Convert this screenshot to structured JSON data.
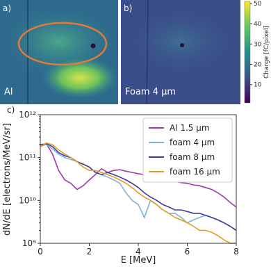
{
  "chart_data": [
    {
      "type": "image",
      "label": "a)",
      "caption": "Al"
    },
    {
      "type": "image",
      "label": "b)",
      "caption": "Foam 4 μm",
      "colorbar": {
        "label": "Charge [fC/pixel]",
        "lim": [
          1,
          51
        ],
        "ticks": [
          10,
          20,
          30,
          40,
          50
        ]
      }
    },
    {
      "type": "line",
      "label": "c)",
      "xlabel": "E [MeV]",
      "ylabel": "dN/dE [electrons/MeV/sr]",
      "log_y": true,
      "legend": "upper right",
      "xlim": [
        0,
        8
      ],
      "xticks": [
        0,
        2,
        4,
        6,
        8
      ],
      "ylim": [
        1000000000.0,
        1000000000000.0
      ],
      "yticks": [
        {
          "value": 1000000000.0,
          "label": "10⁹"
        },
        {
          "value": 10000000000.0,
          "label": "10¹⁰"
        },
        {
          "value": 100000000000.0,
          "label": "10¹¹"
        },
        {
          "value": 1000000000000.0,
          "label": "10¹²"
        }
      ],
      "x": [
        0,
        0.25,
        0.5,
        0.75,
        1,
        1.25,
        1.5,
        1.75,
        2,
        2.25,
        2.5,
        2.75,
        3,
        3.25,
        3.5,
        3.75,
        4,
        4.25,
        4.5,
        4.75,
        5,
        5.25,
        5.5,
        5.75,
        6,
        6.25,
        6.5,
        6.75,
        7,
        7.25,
        7.5,
        7.75,
        8
      ],
      "series": [
        {
          "name": "Al 1.5 μm",
          "color": "#9c3aa6",
          "values": [
            180000000000.0,
            210000000000.0,
            120000000000.0,
            50000000000.0,
            30000000000.0,
            25000000000.0,
            18000000000.0,
            22000000000.0,
            30000000000.0,
            40000000000.0,
            55000000000.0,
            45000000000.0,
            50000000000.0,
            52000000000.0,
            48000000000.0,
            45000000000.0,
            42000000000.0,
            40000000000.0,
            38000000000.0,
            35000000000.0,
            32000000000.0,
            30000000000.0,
            28000000000.0,
            26000000000.0,
            25000000000.0,
            23000000000.0,
            22000000000.0,
            20000000000.0,
            18000000000.0,
            15000000000.0,
            12000000000.0,
            9000000000.0,
            7000000000.0
          ]
        },
        {
          "name": "foam 4 μm",
          "color": "#7fb2d8",
          "values": [
            200000000000.0,
            200000000000.0,
            160000000000.0,
            120000000000.0,
            100000000000.0,
            90000000000.0,
            80000000000.0,
            70000000000.0,
            60000000000.0,
            45000000000.0,
            40000000000.0,
            35000000000.0,
            30000000000.0,
            25000000000.0,
            15000000000.0,
            10000000000.0,
            8000000000.0,
            4000000000.0,
            10000000000.0,
            8000000000.0,
            6000000000.0,
            5000000000.0,
            5000000000.0,
            4000000000.0,
            3000000000.0,
            3500000000.0,
            4000000000.0,
            4500000000.0,
            4000000000.0,
            3500000000.0,
            3000000000.0,
            2500000000.0,
            2000000000.0
          ]
        },
        {
          "name": "foam 8 μm",
          "color": "#3c3c9e",
          "values": [
            200000000000.0,
            210000000000.0,
            180000000000.0,
            130000000000.0,
            110000000000.0,
            100000000000.0,
            80000000000.0,
            70000000000.0,
            60000000000.0,
            45000000000.0,
            40000000000.0,
            45000000000.0,
            40000000000.0,
            35000000000.0,
            30000000000.0,
            25000000000.0,
            20000000000.0,
            15000000000.0,
            12000000000.0,
            10000000000.0,
            8000000000.0,
            7000000000.0,
            6000000000.0,
            6000000000.0,
            5500000000.0,
            5000000000.0,
            5000000000.0,
            4500000000.0,
            4000000000.0,
            3500000000.0,
            3000000000.0,
            2500000000.0,
            2000000000.0
          ]
        },
        {
          "name": "foam 16 μm",
          "color": "#e69b22",
          "values": [
            180000000000.0,
            220000000000.0,
            200000000000.0,
            150000000000.0,
            120000000000.0,
            100000000000.0,
            80000000000.0,
            60000000000.0,
            50000000000.0,
            50000000000.0,
            45000000000.0,
            40000000000.0,
            35000000000.0,
            30000000000.0,
            25000000000.0,
            20000000000.0,
            15000000000.0,
            12000000000.0,
            10000000000.0,
            8000000000.0,
            6000000000.0,
            5000000000.0,
            4000000000.0,
            3500000000.0,
            3000000000.0,
            2500000000.0,
            2000000000.0,
            2000000000.0,
            1800000000.0,
            1500000000.0,
            1200000000.0,
            1000000000.0,
            1000000000.0
          ]
        }
      ]
    }
  ]
}
